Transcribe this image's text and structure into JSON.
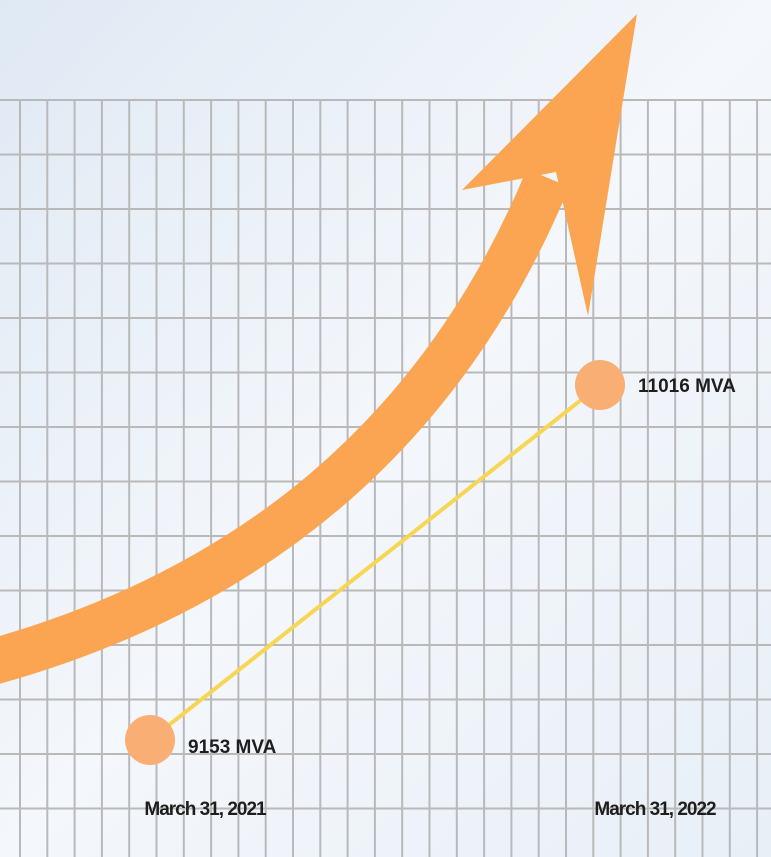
{
  "chart_data": {
    "type": "line",
    "categories": [
      "March 31, 2021",
      "March 31, 2022"
    ],
    "series": [
      {
        "color": "#f7d654",
        "values": [
          9153,
          11016
        ],
        "value_labels": [
          "9153 MVA",
          "11016 MVA"
        ]
      }
    ],
    "marker_color": "#f9ae74"
  }
}
